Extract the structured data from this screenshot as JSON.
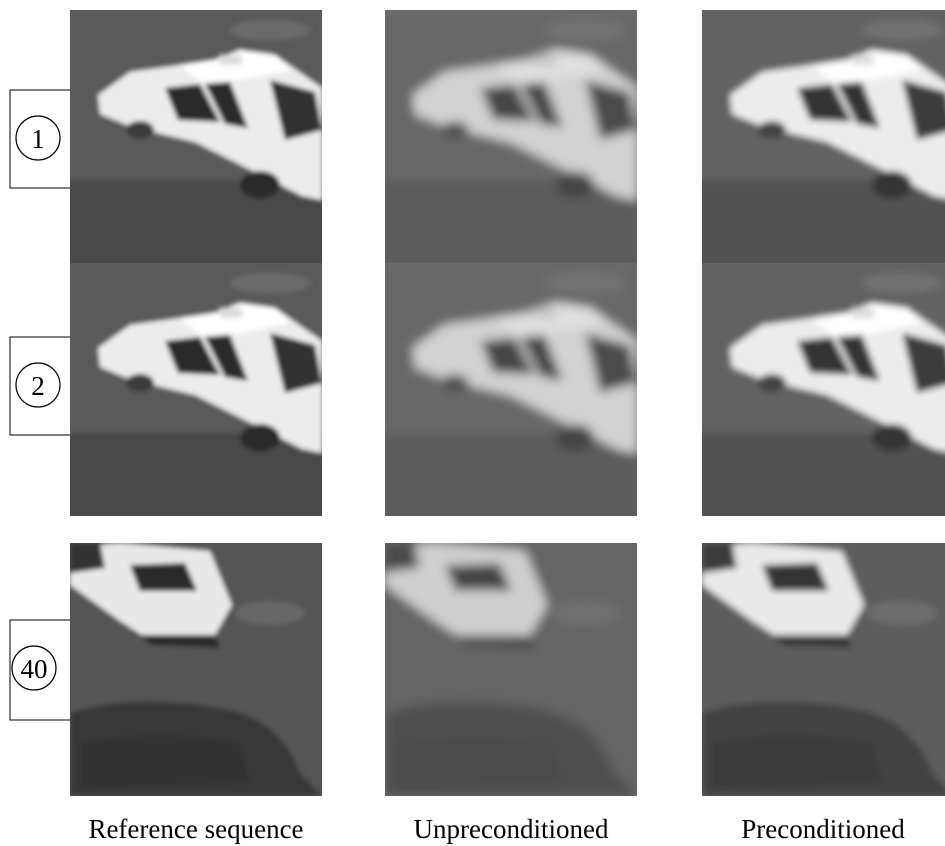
{
  "rows": [
    {
      "label": "1"
    },
    {
      "label": "2"
    },
    {
      "label": "40"
    }
  ],
  "columns": [
    "Reference sequence",
    "Unpreconditioned",
    "Preconditioned"
  ]
}
